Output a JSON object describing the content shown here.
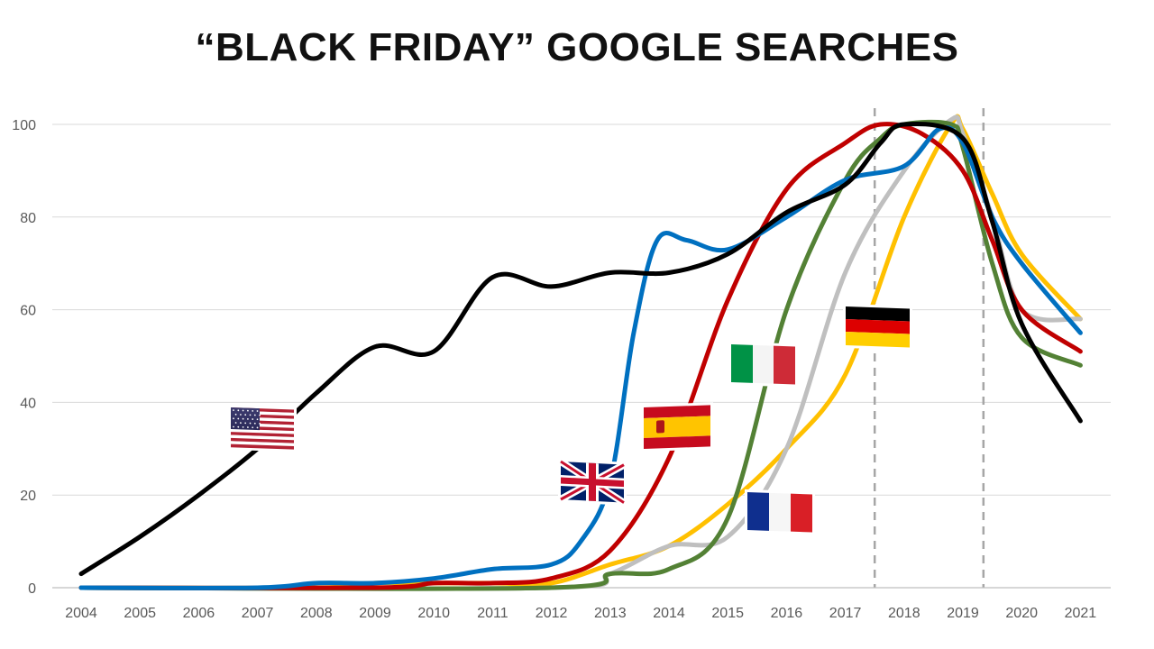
{
  "chart_data": {
    "type": "line",
    "title": "“BLACK FRIDAY” GOOGLE SEARCHES",
    "xlabel": "",
    "ylabel": "",
    "x": [
      "2004",
      "2005",
      "2006",
      "2007",
      "2008",
      "2009",
      "2010",
      "2011",
      "2012",
      "2013",
      "2014",
      "2015",
      "2016",
      "2017",
      "2018",
      "2019",
      "2020",
      "2021"
    ],
    "ylim": [
      0,
      100
    ],
    "yticks": [
      0,
      20,
      40,
      60,
      80,
      100
    ],
    "grid": true,
    "reference_lines_x": [
      2017.5,
      2019.35
    ],
    "series": [
      {
        "flag": "United States",
        "color": "#000000",
        "points": [
          [
            2004,
            3
          ],
          [
            2005,
            11
          ],
          [
            2006,
            20
          ],
          [
            2007,
            30
          ],
          [
            2008,
            42
          ],
          [
            2009,
            52
          ],
          [
            2010,
            51
          ],
          [
            2011,
            67
          ],
          [
            2012,
            65
          ],
          [
            2013,
            68
          ],
          [
            2014,
            68
          ],
          [
            2015,
            72
          ],
          [
            2016,
            81
          ],
          [
            2017,
            87
          ],
          [
            2017.6,
            96
          ],
          [
            2018,
            100
          ],
          [
            2019,
            97
          ],
          [
            2019.5,
            79
          ],
          [
            2020,
            57
          ],
          [
            2021,
            36
          ]
        ]
      },
      {
        "flag": "United Kingdom",
        "color": "#0070C0",
        "points": [
          [
            2004,
            0
          ],
          [
            2007,
            0
          ],
          [
            2008,
            1
          ],
          [
            2009,
            1
          ],
          [
            2010,
            2
          ],
          [
            2011,
            4
          ],
          [
            2012,
            5
          ],
          [
            2012.5,
            10
          ],
          [
            2013,
            23
          ],
          [
            2013.4,
            55
          ],
          [
            2013.8,
            75
          ],
          [
            2014.3,
            75
          ],
          [
            2015,
            73
          ],
          [
            2016,
            80
          ],
          [
            2017,
            88
          ],
          [
            2018,
            91
          ],
          [
            2018.6,
            99
          ],
          [
            2019,
            96
          ],
          [
            2019.5,
            80
          ],
          [
            2020,
            70
          ],
          [
            2021,
            55
          ]
        ]
      },
      {
        "flag": "Spain",
        "color": "#C00000",
        "points": [
          [
            2004,
            0
          ],
          [
            2009,
            0
          ],
          [
            2010,
            1
          ],
          [
            2011,
            1
          ],
          [
            2012,
            2
          ],
          [
            2013,
            8
          ],
          [
            2014,
            28
          ],
          [
            2015,
            62
          ],
          [
            2016,
            86
          ],
          [
            2017,
            96
          ],
          [
            2017.6,
            100
          ],
          [
            2018.3,
            98
          ],
          [
            2019,
            90
          ],
          [
            2019.5,
            75
          ],
          [
            2020,
            60
          ],
          [
            2021,
            51
          ]
        ]
      },
      {
        "flag": "Italy",
        "color": "#538135",
        "points": [
          [
            2004,
            0
          ],
          [
            2012,
            0
          ],
          [
            2013,
            3
          ],
          [
            2014,
            4
          ],
          [
            2015,
            15
          ],
          [
            2016,
            60
          ],
          [
            2017,
            88
          ],
          [
            2017.6,
            97
          ],
          [
            2018,
            100
          ],
          [
            2018.8,
            100
          ],
          [
            2019,
            95
          ],
          [
            2019.5,
            70
          ],
          [
            2020,
            54
          ],
          [
            2021,
            48
          ]
        ]
      },
      {
        "flag": "France",
        "color": "#BFBFBF",
        "points": [
          [
            2004,
            0
          ],
          [
            2012,
            0
          ],
          [
            2013,
            3
          ],
          [
            2014,
            9
          ],
          [
            2015,
            11
          ],
          [
            2016,
            30
          ],
          [
            2017,
            68
          ],
          [
            2018,
            90
          ],
          [
            2018.8,
            101
          ],
          [
            2019,
            98
          ],
          [
            2019.5,
            80
          ],
          [
            2020,
            60
          ],
          [
            2021,
            58
          ]
        ]
      },
      {
        "flag": "Germany",
        "color": "#FFC000",
        "points": [
          [
            2004,
            0
          ],
          [
            2008,
            0
          ],
          [
            2009,
            1
          ],
          [
            2010,
            1
          ],
          [
            2011,
            1
          ],
          [
            2012,
            1
          ],
          [
            2013,
            5
          ],
          [
            2014,
            9
          ],
          [
            2015,
            18
          ],
          [
            2016,
            30
          ],
          [
            2017,
            46
          ],
          [
            2018,
            80
          ],
          [
            2018.8,
            100
          ],
          [
            2019,
            99
          ],
          [
            2019.5,
            85
          ],
          [
            2020,
            72
          ],
          [
            2021,
            58
          ]
        ]
      }
    ]
  }
}
